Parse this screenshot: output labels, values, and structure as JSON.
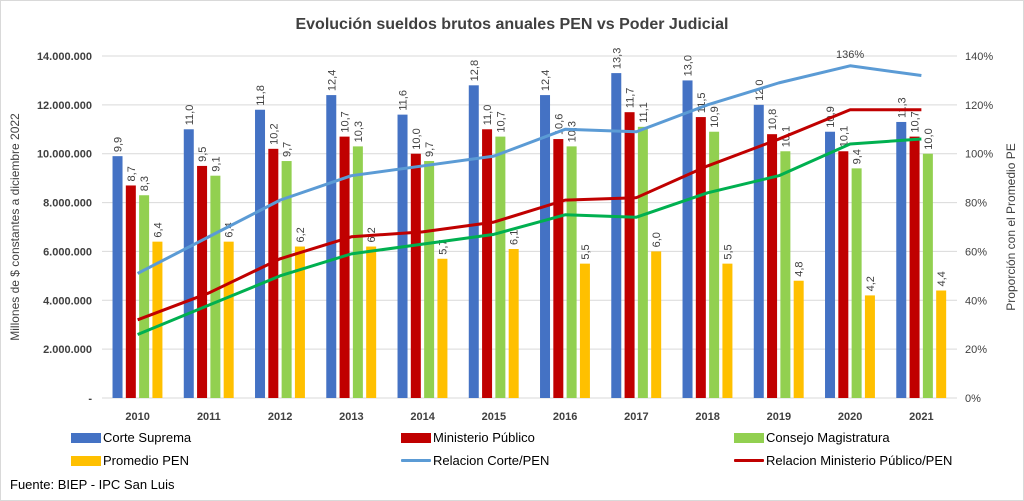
{
  "chart_data": {
    "type": "bar",
    "title": "Evolución sueldos brutos anuales PEN vs Poder Judicial",
    "ylabel": "Millones de $ constantes a diciembre 2022",
    "y2label": "Proporción con el Promedio  PE",
    "ylim": [
      0,
      14000000
    ],
    "y2lim": [
      0,
      140
    ],
    "yticks": [
      "-",
      "2.000.000",
      "4.000.000",
      "6.000.000",
      "8.000.000",
      "10.000.000",
      "12.000.000",
      "14.000.000"
    ],
    "y2ticks": [
      "0%",
      "20%",
      "40%",
      "60%",
      "80%",
      "100%",
      "120%",
      "140%"
    ],
    "grid": true,
    "legend_placement": "bottom",
    "categories": [
      "2010",
      "2011",
      "2012",
      "2013",
      "2014",
      "2015",
      "2016",
      "2017",
      "2018",
      "2019",
      "2020",
      "2021"
    ],
    "series": [
      {
        "name": "Corte Suprema",
        "kind": "bar",
        "color": "#4472c4",
        "values": [
          9.9,
          11.0,
          11.8,
          12.4,
          11.6,
          12.8,
          12.4,
          13.3,
          13.0,
          12.0,
          10.9,
          11.3
        ],
        "labels": [
          "9,9",
          "11,0",
          "11,8",
          "12,4",
          "11,6",
          "12,8",
          "12,4",
          "13,3",
          "13,0",
          "12,0",
          "10,9",
          "11,3"
        ]
      },
      {
        "name": "Ministerio Público",
        "kind": "bar",
        "color": "#c00000",
        "values": [
          8.7,
          9.5,
          10.2,
          10.7,
          10.0,
          11.0,
          10.6,
          11.7,
          11.5,
          10.8,
          10.1,
          10.7
        ],
        "labels": [
          "8,7",
          "9,5",
          "10,2",
          "10,7",
          "10,0",
          "11,0",
          "10,6",
          "11,7",
          "11,5",
          "10,8",
          "10,1",
          "10,7"
        ]
      },
      {
        "name": "Consejo Magistratura",
        "kind": "bar",
        "color": "#92d050",
        "values": [
          8.3,
          9.1,
          9.7,
          10.3,
          9.7,
          10.7,
          10.3,
          11.1,
          10.9,
          10.1,
          9.4,
          10.0
        ],
        "labels": [
          "8,3",
          "9,1",
          "9,7",
          "10,3",
          "9,7",
          "10,7",
          "10,3",
          "11,1",
          "10,9",
          "10,1",
          "9,4",
          "10,0"
        ]
      },
      {
        "name": "Promedio PEN",
        "kind": "bar",
        "color": "#ffc000",
        "values": [
          6.4,
          6.4,
          6.2,
          6.2,
          5.7,
          6.1,
          5.5,
          6.0,
          5.5,
          4.8,
          4.2,
          4.4
        ],
        "labels": [
          "6,4",
          "6,4",
          "6,2",
          "6,2",
          "5,7",
          "6,1",
          "5,5",
          "6,0",
          "5,5",
          "4,8",
          "4,2",
          "4,4"
        ]
      },
      {
        "name": "Relacion Corte/PEN",
        "kind": "line",
        "axis": "right",
        "color": "#5b9bd5",
        "values": [
          51,
          66,
          81,
          91,
          95,
          99,
          110,
          109,
          120,
          129,
          136,
          132
        ],
        "annotation": {
          "index": 10,
          "text": "136%"
        }
      },
      {
        "name": "Relacion Ministerio Público/PEN",
        "kind": "line",
        "axis": "right",
        "color": "#c00000",
        "values": [
          32,
          43,
          57,
          66,
          68,
          72,
          81,
          82,
          95,
          106,
          118,
          118
        ]
      },
      {
        "kind": "line",
        "axis": "right",
        "color": "#00b050",
        "values": [
          26,
          38,
          50,
          59,
          63,
          67,
          75,
          74,
          84,
          91,
          104,
          106
        ]
      }
    ]
  },
  "source": "Fuente: BIEP - IPC San Luis"
}
